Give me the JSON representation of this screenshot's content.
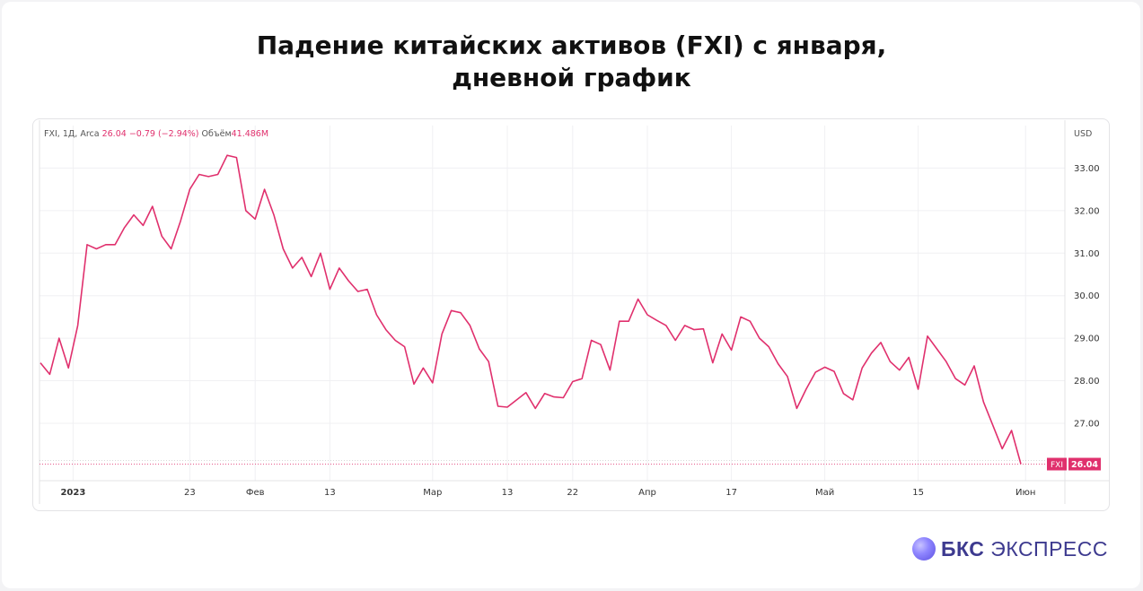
{
  "title_line1": "Падение китайских активов (FXI) с января,",
  "title_line2": "дневной график",
  "legend": {
    "symbol": "FXI, 1Д, Arca",
    "price": "26.04",
    "change": "−0.79 (−2.94%)",
    "volume_label": "Объём",
    "volume": "41.486M"
  },
  "brand": {
    "part1": "БКС",
    "part2": "ЭКСПРЕСС"
  },
  "colors": {
    "line": "#e0306d",
    "grid": "#f0f0f3",
    "axis_text": "#333333"
  },
  "chart_data": {
    "type": "line",
    "currency": "USD",
    "ylim": [
      25.65,
      34.0
    ],
    "y_ticks": [
      27.0,
      28.0,
      29.0,
      30.0,
      31.0,
      32.0,
      33.0
    ],
    "x_ticks": [
      {
        "label": "2023",
        "i": 3.5,
        "bold": true
      },
      {
        "label": "23",
        "i": 16
      },
      {
        "label": "Фев",
        "i": 23
      },
      {
        "label": "13",
        "i": 31
      },
      {
        "label": "Мар",
        "i": 42
      },
      {
        "label": "13",
        "i": 50
      },
      {
        "label": "22",
        "i": 57
      },
      {
        "label": "Апр",
        "i": 65
      },
      {
        "label": "17",
        "i": 74
      },
      {
        "label": "Май",
        "i": 84
      },
      {
        "label": "15",
        "i": 94
      },
      {
        "label": "Июн",
        "i": 105.5
      }
    ],
    "last_label": "FXI",
    "last_value": "26.04",
    "series": [
      {
        "values": [
          28.42,
          28.15,
          29.0,
          28.3,
          29.3,
          31.2,
          31.1,
          31.2,
          31.2,
          31.6,
          31.9,
          31.65,
          32.1,
          31.4,
          31.1,
          31.75,
          32.5,
          32.85,
          32.8,
          32.85,
          33.3,
          33.25,
          32.0,
          31.8,
          32.5,
          31.9,
          31.1,
          30.65,
          30.9,
          30.45,
          31.0,
          30.15,
          30.65,
          30.35,
          30.1,
          30.15,
          29.55,
          29.2,
          28.95,
          28.8,
          27.92,
          28.3,
          27.95,
          29.1,
          29.65,
          29.6,
          29.3,
          28.75,
          28.45,
          27.4,
          27.38,
          27.55,
          27.72,
          27.35,
          27.7,
          27.62,
          27.6,
          27.98,
          28.05,
          28.95,
          28.85,
          28.25,
          29.4,
          29.4,
          29.92,
          29.55,
          29.42,
          29.3,
          28.95,
          29.3,
          29.2,
          29.22,
          28.42,
          29.1,
          28.72,
          29.5,
          29.4,
          29.0,
          28.8,
          28.4,
          28.1,
          27.35,
          27.8,
          28.2,
          28.32,
          28.22,
          27.7,
          27.55,
          28.3,
          28.65,
          28.9,
          28.45,
          28.25,
          28.55,
          27.8,
          29.05,
          28.75,
          28.45,
          28.05,
          27.9,
          28.35,
          27.5,
          26.95,
          26.4,
          26.83,
          26.04
        ]
      }
    ]
  }
}
